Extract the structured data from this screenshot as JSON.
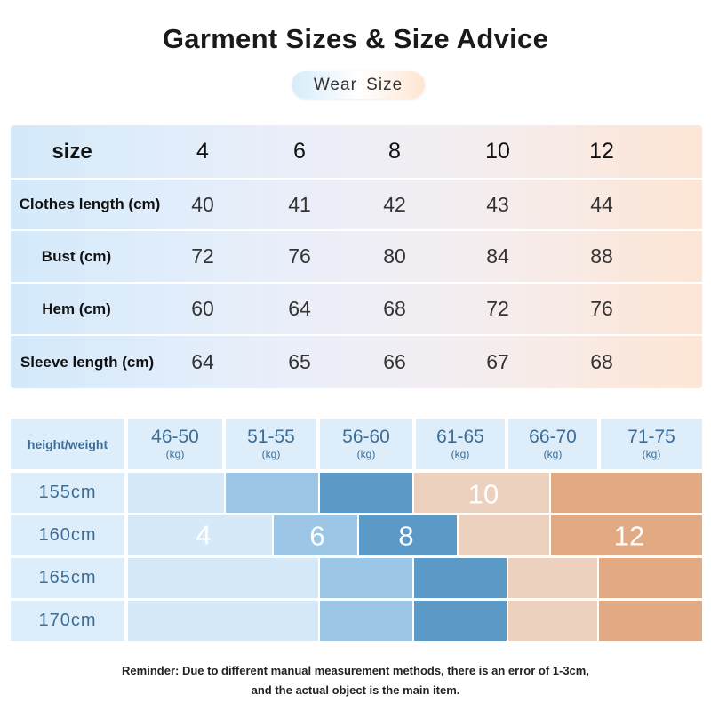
{
  "title": "Garment Sizes & Size Advice",
  "tab_label": "Wear  Size",
  "size_table": {
    "header_label": "size",
    "sizes": [
      "4",
      "6",
      "8",
      "10",
      "12"
    ],
    "rows": [
      {
        "label": "Clothes length (cm)",
        "values": [
          "40",
          "41",
          "42",
          "43",
          "44"
        ]
      },
      {
        "label": "Bust (cm)",
        "values": [
          "72",
          "76",
          "80",
          "84",
          "88"
        ]
      },
      {
        "label": "Hem (cm)",
        "values": [
          "60",
          "64",
          "68",
          "72",
          "76"
        ]
      },
      {
        "label": "Sleeve length (cm)",
        "values": [
          "64",
          "65",
          "66",
          "67",
          "68"
        ]
      }
    ]
  },
  "advice_grid": {
    "corner_label": "height/weight",
    "weight_ranges": [
      {
        "range": "46-50",
        "unit": "(kg)"
      },
      {
        "range": "51-55",
        "unit": "(kg)"
      },
      {
        "range": "56-60",
        "unit": "(kg)"
      },
      {
        "range": "61-65",
        "unit": "(kg)"
      },
      {
        "range": "66-70",
        "unit": "(kg)"
      },
      {
        "range": "71-75",
        "unit": "(kg)"
      }
    ],
    "heights": [
      "155cm",
      "160cm",
      "165cm",
      "170cm"
    ],
    "size_marks": [
      "4",
      "6",
      "8",
      "10",
      "12"
    ],
    "colors": {
      "size_4": "#d6e9f8",
      "size_6": "#9bc6e6",
      "size_8": "#5b99c6",
      "size_10": "#ecd1bf",
      "size_12": "#e1aa82"
    }
  },
  "reminder": {
    "line1": "Reminder: Due to different manual measurement methods, there is an error of 1-3cm,",
    "line2": "and the actual object is the main item."
  }
}
